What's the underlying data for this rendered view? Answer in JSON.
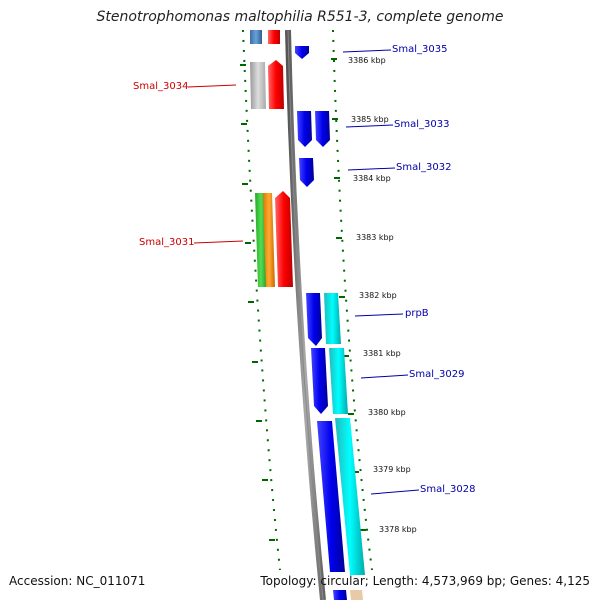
{
  "header": {
    "title": "Stenotrophomonas maltophilia R551-3, complete genome"
  },
  "footer": {
    "accession": "Accession: NC_011071",
    "topology": "Topology: circular; Length: 4,573,969 bp; Genes: 4,125"
  },
  "colors": {
    "forward_label": "#cc0000",
    "reverse_label": "#0000aa",
    "tick": "#006600",
    "backbone": "#777777",
    "red": "#ff0000",
    "blue": "#0000ee",
    "cyan": "#00cccc",
    "gray": "#bbbbbb",
    "green": "#33cc33",
    "orange": "#ff9900",
    "steelblue": "#4a86c5"
  },
  "kbp_labels": [
    "3386 kbp",
    "3385 kbp",
    "3384 kbp",
    "3383 kbp",
    "3382 kbp",
    "3381 kbp",
    "3380 kbp",
    "3379 kbp",
    "3378 kbp"
  ],
  "gene_labels": {
    "left": [
      "Smal_3034",
      "Smal_3031"
    ],
    "right": [
      "Smal_3035",
      "Smal_3033",
      "Smal_3032",
      "prpB",
      "Smal_3029",
      "Smal_3028"
    ]
  }
}
